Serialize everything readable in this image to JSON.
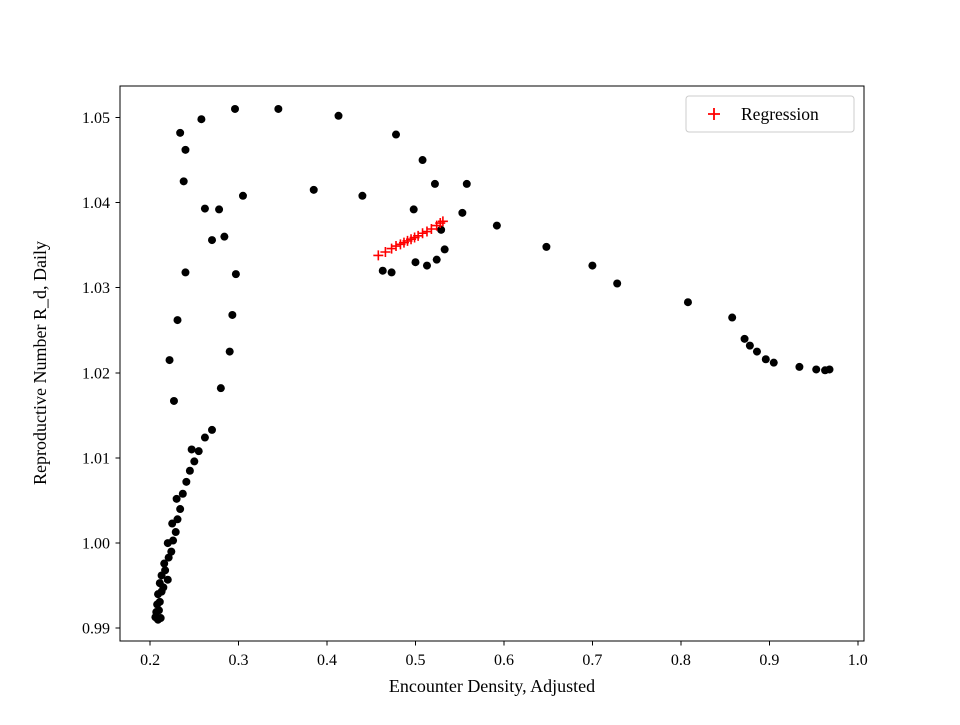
{
  "figure": {
    "background": "#ffffff"
  },
  "chart_data": {
    "type": "scatter",
    "title": "",
    "xlabel": "Encounter Density, Adjusted",
    "ylabel": "Reproductive Number R_d, Daily",
    "xlim": [
      0.166,
      1.007
    ],
    "ylim": [
      0.9885,
      1.0537
    ],
    "grid": false,
    "legend_position": "upper right",
    "xticks": [
      {
        "value": 0.2,
        "label": "0.2"
      },
      {
        "value": 0.3,
        "label": "0.3"
      },
      {
        "value": 0.4,
        "label": "0.4"
      },
      {
        "value": 0.5,
        "label": "0.5"
      },
      {
        "value": 0.6,
        "label": "0.6"
      },
      {
        "value": 0.7,
        "label": "0.7"
      },
      {
        "value": 0.8,
        "label": "0.8"
      },
      {
        "value": 0.9,
        "label": "0.9"
      },
      {
        "value": 1.0,
        "label": "1.0"
      }
    ],
    "yticks": [
      {
        "value": 0.99,
        "label": "0.99"
      },
      {
        "value": 1.0,
        "label": "1.00"
      },
      {
        "value": 1.01,
        "label": "1.01"
      },
      {
        "value": 1.02,
        "label": "1.02"
      },
      {
        "value": 1.03,
        "label": "1.03"
      },
      {
        "value": 1.04,
        "label": "1.04"
      },
      {
        "value": 1.05,
        "label": "1.05"
      }
    ],
    "series": [
      {
        "name": "data",
        "marker": "circle",
        "color": "#000000",
        "in_legend": false,
        "points": [
          [
            0.206,
            0.9913
          ],
          [
            0.209,
            0.991
          ],
          [
            0.212,
            0.9912
          ],
          [
            0.207,
            0.9919
          ],
          [
            0.21,
            0.9921
          ],
          [
            0.208,
            0.9928
          ],
          [
            0.211,
            0.9931
          ],
          [
            0.209,
            0.994
          ],
          [
            0.213,
            0.9943
          ],
          [
            0.211,
            0.9953
          ],
          [
            0.215,
            0.9948
          ],
          [
            0.213,
            0.9962
          ],
          [
            0.217,
            0.9968
          ],
          [
            0.22,
            0.9957
          ],
          [
            0.216,
            0.9976
          ],
          [
            0.221,
            0.9983
          ],
          [
            0.224,
            0.999
          ],
          [
            0.22,
            1.0
          ],
          [
            0.226,
            1.0003
          ],
          [
            0.229,
            1.0013
          ],
          [
            0.225,
            1.0023
          ],
          [
            0.231,
            1.0028
          ],
          [
            0.234,
            1.004
          ],
          [
            0.23,
            1.0052
          ],
          [
            0.237,
            1.0058
          ],
          [
            0.241,
            1.0072
          ],
          [
            0.245,
            1.0085
          ],
          [
            0.25,
            1.0096
          ],
          [
            0.247,
            1.011
          ],
          [
            0.255,
            1.0108
          ],
          [
            0.262,
            1.0124
          ],
          [
            0.27,
            1.0133
          ],
          [
            0.28,
            1.0182
          ],
          [
            0.29,
            1.0225
          ],
          [
            0.293,
            1.0268
          ],
          [
            0.297,
            1.0316
          ],
          [
            0.227,
            1.0167
          ],
          [
            0.222,
            1.0215
          ],
          [
            0.231,
            1.0262
          ],
          [
            0.24,
            1.0318
          ],
          [
            0.27,
            1.0356
          ],
          [
            0.284,
            1.036
          ],
          [
            0.262,
            1.0393
          ],
          [
            0.278,
            1.0392
          ],
          [
            0.305,
            1.0408
          ],
          [
            0.238,
            1.0425
          ],
          [
            0.24,
            1.0462
          ],
          [
            0.234,
            1.0482
          ],
          [
            0.258,
            1.0498
          ],
          [
            0.296,
            1.051
          ],
          [
            0.345,
            1.051
          ],
          [
            0.385,
            1.0415
          ],
          [
            0.413,
            1.0502
          ],
          [
            0.44,
            1.0408
          ],
          [
            0.478,
            1.048
          ],
          [
            0.508,
            1.045
          ],
          [
            0.522,
            1.0422
          ],
          [
            0.463,
            1.032
          ],
          [
            0.473,
            1.0318
          ],
          [
            0.5,
            1.033
          ],
          [
            0.513,
            1.0326
          ],
          [
            0.524,
            1.0333
          ],
          [
            0.533,
            1.0345
          ],
          [
            0.529,
            1.0368
          ],
          [
            0.498,
            1.0392
          ],
          [
            0.553,
            1.0388
          ],
          [
            0.558,
            1.0422
          ],
          [
            0.592,
            1.0373
          ],
          [
            0.648,
            1.0348
          ],
          [
            0.7,
            1.0326
          ],
          [
            0.728,
            1.0305
          ],
          [
            0.808,
            1.0283
          ],
          [
            0.858,
            1.0265
          ],
          [
            0.872,
            1.024
          ],
          [
            0.878,
            1.0232
          ],
          [
            0.886,
            1.0225
          ],
          [
            0.896,
            1.0216
          ],
          [
            0.905,
            1.0212
          ],
          [
            0.934,
            1.0207
          ],
          [
            0.953,
            1.0204
          ],
          [
            0.963,
            1.0203
          ],
          [
            0.968,
            1.0204
          ]
        ]
      },
      {
        "name": "Regression",
        "marker": "plus",
        "color": "#ff0000",
        "in_legend": true,
        "points": [
          [
            0.458,
            1.0338
          ],
          [
            0.466,
            1.0342
          ],
          [
            0.473,
            1.0346
          ],
          [
            0.478,
            1.0349
          ],
          [
            0.483,
            1.0351
          ],
          [
            0.487,
            1.0353
          ],
          [
            0.491,
            1.0355
          ],
          [
            0.495,
            1.0357
          ],
          [
            0.499,
            1.0359
          ],
          [
            0.503,
            1.0361
          ],
          [
            0.508,
            1.0364
          ],
          [
            0.513,
            1.0366
          ],
          [
            0.518,
            1.0369
          ],
          [
            0.524,
            1.0373
          ],
          [
            0.528,
            1.0376
          ],
          [
            0.531,
            1.0378
          ]
        ]
      }
    ]
  }
}
